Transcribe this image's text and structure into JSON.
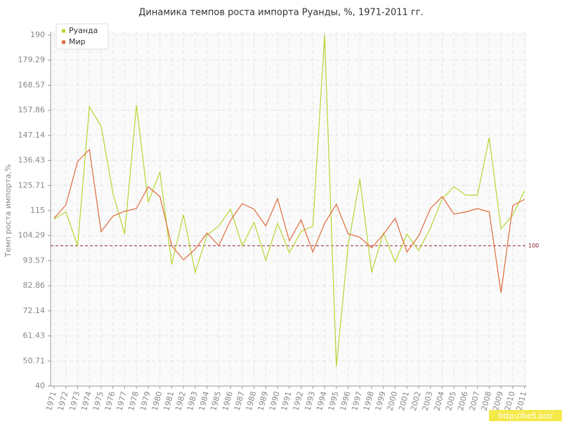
{
  "chart_data": {
    "type": "line",
    "title": "Динамика темпов роста импорта Руанды, %, 1971-2011 гг.",
    "y_label": "Темп роста импорта,%",
    "x": [
      1971,
      1972,
      1973,
      1974,
      1975,
      1976,
      1977,
      1978,
      1979,
      1980,
      1981,
      1982,
      1983,
      1984,
      1985,
      1986,
      1987,
      1988,
      1989,
      1990,
      1991,
      1992,
      1993,
      1994,
      1995,
      1996,
      1997,
      1998,
      1999,
      2000,
      2001,
      2002,
      2003,
      2004,
      2005,
      2006,
      2007,
      2008,
      2009,
      2010,
      2011
    ],
    "series": [
      {
        "name": "Руанда",
        "color": "#b5d631",
        "values": [
          111.4,
          114.4,
          100,
          159.4,
          151,
          122.5,
          105,
          160,
          118.6,
          131.5,
          92,
          113.2,
          88.6,
          104.5,
          108.4,
          115.6,
          100,
          110,
          93.7,
          109.6,
          97,
          106,
          108.4,
          190,
          48.4,
          100,
          128.5,
          88.6,
          105.4,
          93,
          105,
          97.9,
          107.5,
          120,
          125.2,
          121.6,
          121.6,
          146.2,
          107.2,
          113.2,
          123.4
        ]
      },
      {
        "name": "Мир",
        "color": "#e06a3b",
        "values": [
          111.7,
          117.4,
          136,
          141.1,
          106,
          112.6,
          114.7,
          115.9,
          125.2,
          121,
          100,
          94,
          98.5,
          105.4,
          100,
          110.8,
          118,
          115.6,
          108.4,
          120.1,
          102.1,
          111.1,
          97.3,
          109.6,
          117.7,
          105.1,
          103.6,
          99.1,
          104.8,
          111.7,
          97.3,
          104.2,
          115.9,
          121,
          113.5,
          114.4,
          115.9,
          114.4,
          79.9,
          117.1,
          119.8
        ]
      }
    ],
    "xlim": [
      1970.7,
      2011.2
    ],
    "ylim": [
      40,
      190
    ],
    "yticks": [
      40,
      50.71,
      61.43,
      72.14,
      82.86,
      93.57,
      104.29,
      115,
      125.71,
      136.43,
      147.14,
      157.86,
      168.57,
      179.29,
      190
    ],
    "hline": 100,
    "hline_color": "#8b1a2b",
    "grid": true,
    "legend": "top-left"
  },
  "watermark": "http://be5.biz/"
}
